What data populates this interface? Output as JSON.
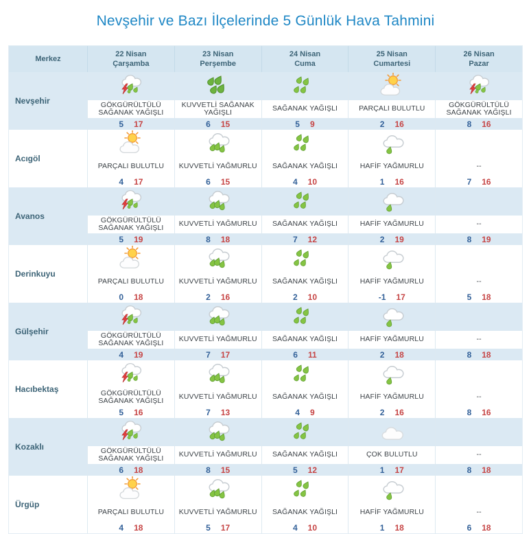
{
  "title": "Nevşehir ve Bazı İlçelerinde 5 Günlük Hava Tahmini",
  "colors": {
    "title_color": "#1e87c5",
    "header_bg": "#d5e6f1",
    "header_text": "#3d6477",
    "stripe_bg": "#dbe9f3",
    "min_temp": "#336199",
    "max_temp": "#c64545",
    "thunder_red": "#e23f3f",
    "rain_green": "#85c443",
    "sun_orange": "#f29b38"
  },
  "chart_data": {
    "type": "table",
    "title": "Nevşehir ve Bazı İlçelerinde 5 Günlük Hava Tahmini",
    "merkez_header": "Merkez",
    "day_headers": [
      {
        "date": "22 Nisan",
        "day": "Çarşamba"
      },
      {
        "date": "23 Nisan",
        "day": "Perşembe"
      },
      {
        "date": "24 Nisan",
        "day": "Cuma"
      },
      {
        "date": "25 Nisan",
        "day": "Cumartesi"
      },
      {
        "date": "26 Nisan",
        "day": "Pazar"
      }
    ],
    "rows": [
      {
        "name": "Nevşehir",
        "cells": [
          {
            "icon": "thunderstorm-icon",
            "desc": "GÖKGÜRÜLTÜLÜ SAĞANAK YAĞIŞLI",
            "min": "5",
            "max": "17"
          },
          {
            "icon": "heavy-shower-icon",
            "desc": "KUVVETLİ SAĞANAK YAĞIŞLI",
            "min": "6",
            "max": "15"
          },
          {
            "icon": "shower-icon",
            "desc": "SAĞANAK YAĞIŞLI",
            "min": "5",
            "max": "9"
          },
          {
            "icon": "partly-cloudy-icon",
            "desc": "PARÇALI BULUTLU",
            "min": "2",
            "max": "16"
          },
          {
            "icon": "thunderstorm-icon",
            "desc": "GÖKGÜRÜLTÜLÜ SAĞANAK YAĞIŞLI",
            "min": "8",
            "max": "16"
          }
        ]
      },
      {
        "name": "Acıgöl",
        "cells": [
          {
            "icon": "partly-cloudy-icon",
            "desc": "PARÇALI BULUTLU",
            "min": "4",
            "max": "17"
          },
          {
            "icon": "heavy-rain-icon",
            "desc": "KUVVETLİ YAĞMURLU",
            "min": "6",
            "max": "15"
          },
          {
            "icon": "shower-icon",
            "desc": "SAĞANAK YAĞIŞLI",
            "min": "4",
            "max": "10"
          },
          {
            "icon": "light-rain-icon",
            "desc": "HAFİF YAĞMURLU",
            "min": "1",
            "max": "16"
          },
          {
            "icon": null,
            "desc": "--",
            "min": "7",
            "max": "16"
          }
        ]
      },
      {
        "name": "Avanos",
        "cells": [
          {
            "icon": "thunderstorm-icon",
            "desc": "GÖKGÜRÜLTÜLÜ SAĞANAK YAĞIŞLI",
            "min": "5",
            "max": "19"
          },
          {
            "icon": "heavy-rain-icon",
            "desc": "KUVVETLİ YAĞMURLU",
            "min": "8",
            "max": "18"
          },
          {
            "icon": "shower-icon",
            "desc": "SAĞANAK YAĞIŞLI",
            "min": "7",
            "max": "12"
          },
          {
            "icon": "light-rain-icon",
            "desc": "HAFİF YAĞMURLU",
            "min": "2",
            "max": "19"
          },
          {
            "icon": null,
            "desc": "--",
            "min": "8",
            "max": "19"
          }
        ]
      },
      {
        "name": "Derinkuyu",
        "cells": [
          {
            "icon": "partly-cloudy-icon",
            "desc": "PARÇALI BULUTLU",
            "min": "0",
            "max": "18"
          },
          {
            "icon": "heavy-rain-icon",
            "desc": "KUVVETLİ YAĞMURLU",
            "min": "2",
            "max": "16"
          },
          {
            "icon": "shower-icon",
            "desc": "SAĞANAK YAĞIŞLI",
            "min": "2",
            "max": "10"
          },
          {
            "icon": "light-rain-icon",
            "desc": "HAFİF YAĞMURLU",
            "min": "-1",
            "max": "17"
          },
          {
            "icon": null,
            "desc": "--",
            "min": "5",
            "max": "18"
          }
        ]
      },
      {
        "name": "Gülşehir",
        "cells": [
          {
            "icon": "thunderstorm-icon",
            "desc": "GÖKGÜRÜLTÜLÜ SAĞANAK YAĞIŞLI",
            "min": "4",
            "max": "19"
          },
          {
            "icon": "heavy-rain-icon",
            "desc": "KUVVETLİ YAĞMURLU",
            "min": "7",
            "max": "17"
          },
          {
            "icon": "shower-icon",
            "desc": "SAĞANAK YAĞIŞLI",
            "min": "6",
            "max": "11"
          },
          {
            "icon": "light-rain-icon",
            "desc": "HAFİF YAĞMURLU",
            "min": "2",
            "max": "18"
          },
          {
            "icon": null,
            "desc": "--",
            "min": "8",
            "max": "18"
          }
        ]
      },
      {
        "name": "Hacıbektaş",
        "cells": [
          {
            "icon": "thunderstorm-icon",
            "desc": "GÖKGÜRÜLTÜLÜ SAĞANAK YAĞIŞLI",
            "min": "5",
            "max": "16"
          },
          {
            "icon": "heavy-rain-icon",
            "desc": "KUVVETLİ YAĞMURLU",
            "min": "7",
            "max": "13"
          },
          {
            "icon": "shower-icon",
            "desc": "SAĞANAK YAĞIŞLI",
            "min": "4",
            "max": "9"
          },
          {
            "icon": "light-rain-icon",
            "desc": "HAFİF YAĞMURLU",
            "min": "2",
            "max": "16"
          },
          {
            "icon": null,
            "desc": "--",
            "min": "8",
            "max": "16"
          }
        ]
      },
      {
        "name": "Kozaklı",
        "cells": [
          {
            "icon": "thunderstorm-icon",
            "desc": "GÖKGÜRÜLTÜLÜ SAĞANAK YAĞIŞLI",
            "min": "6",
            "max": "18"
          },
          {
            "icon": "heavy-rain-icon",
            "desc": "KUVVETLİ YAĞMURLU",
            "min": "8",
            "max": "15"
          },
          {
            "icon": "shower-icon",
            "desc": "SAĞANAK YAĞIŞLI",
            "min": "5",
            "max": "12"
          },
          {
            "icon": "cloudy-icon",
            "desc": "ÇOK BULUTLU",
            "min": "1",
            "max": "17"
          },
          {
            "icon": null,
            "desc": "--",
            "min": "8",
            "max": "18"
          }
        ]
      },
      {
        "name": "Ürgüp",
        "cells": [
          {
            "icon": "partly-cloudy-icon",
            "desc": "PARÇALI BULUTLU",
            "min": "4",
            "max": "18"
          },
          {
            "icon": "heavy-rain-icon",
            "desc": "KUVVETLİ YAĞMURLU",
            "min": "5",
            "max": "17"
          },
          {
            "icon": "shower-icon",
            "desc": "SAĞANAK YAĞIŞLI",
            "min": "4",
            "max": "10"
          },
          {
            "icon": "light-rain-icon",
            "desc": "HAFİF YAĞMURLU",
            "min": "1",
            "max": "18"
          },
          {
            "icon": null,
            "desc": "--",
            "min": "6",
            "max": "18"
          }
        ]
      }
    ]
  }
}
